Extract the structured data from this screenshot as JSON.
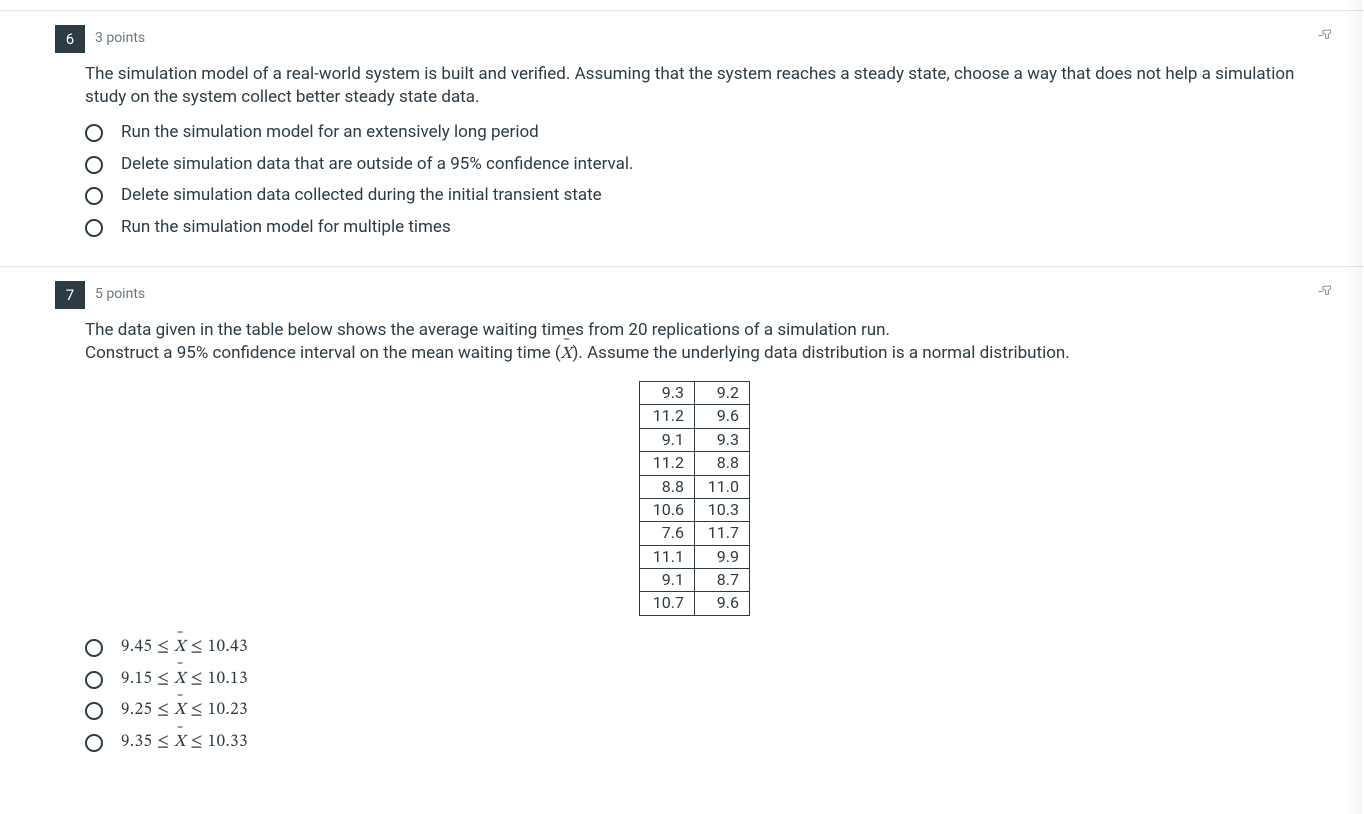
{
  "questions": [
    {
      "number": "6",
      "points": "3 points",
      "text": "The simulation model of a real-world system is built and verified. Assuming that the system reaches a steady state, choose a way that does not help a simulation study on the system collect better steady state data.",
      "options": [
        "Run the simulation model for an extensively long period",
        "Delete simulation data that are outside of a 95% confidence interval.",
        "Delete simulation data collected during the initial transient state",
        "Run the simulation model for multiple times"
      ]
    },
    {
      "number": "7",
      "points": "5 points",
      "text_pre": "The data given in the table below shows the average waiting times from 20 replications of a simulation run.\nConstruct a 95% confidence interval on the mean waiting time (",
      "text_post": "). Assume the underlying data distribution is a normal distribution.",
      "table": [
        [
          "9.3",
          "9.2"
        ],
        [
          "11.2",
          "9.6"
        ],
        [
          "9.1",
          "9.3"
        ],
        [
          "11.2",
          "8.8"
        ],
        [
          "8.8",
          "11.0"
        ],
        [
          "10.6",
          "10.3"
        ],
        [
          "7.6",
          "11.7"
        ],
        [
          "11.1",
          "9.9"
        ],
        [
          "9.1",
          "8.7"
        ],
        [
          "10.7",
          "9.6"
        ]
      ],
      "math_options": [
        {
          "low": "9.45",
          "high": "10.43"
        },
        {
          "low": "9.15",
          "high": "10.13"
        },
        {
          "low": "9.25",
          "high": "10.23"
        },
        {
          "low": "9.35",
          "high": "10.33"
        }
      ]
    }
  ],
  "colors": {
    "text": "#2d3b45",
    "muted": "#6b7780",
    "number_bg": "#2d3b45",
    "border": "#e1e4e8"
  }
}
